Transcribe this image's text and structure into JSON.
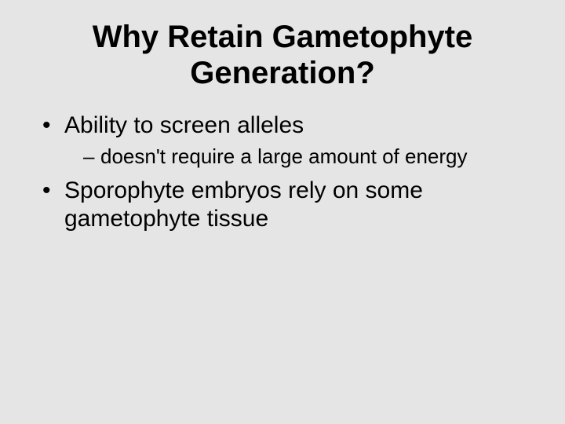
{
  "slide": {
    "background_color": "#e5e5e5",
    "text_color": "#000000",
    "font_family": "Verdana",
    "title": {
      "text": "Why Retain Gametophyte Generation?",
      "font_size_pt": 40,
      "font_weight": 700,
      "align": "center"
    },
    "bullets": [
      {
        "text": "Ability to screen alleles",
        "font_size_pt": 30,
        "sub": [
          {
            "text": "doesn't require a large amount of energy",
            "font_size_pt": 26
          }
        ]
      },
      {
        "text": "Sporophyte embryos rely on some gametophyte tissue",
        "font_size_pt": 30,
        "sub": []
      }
    ]
  }
}
